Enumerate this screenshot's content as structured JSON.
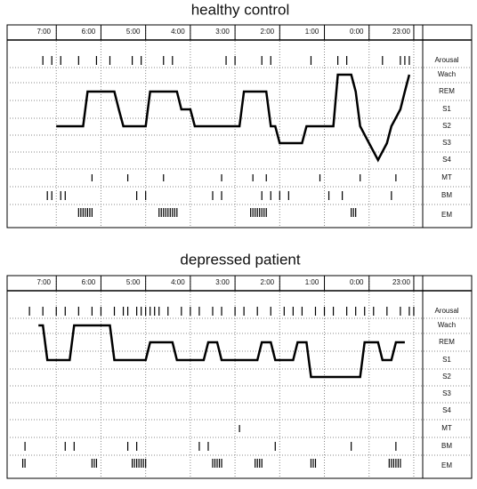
{
  "chart_data": [
    {
      "type": "hypnogram",
      "title": "healthy control",
      "rows": [
        "Arousal",
        "Wach",
        "REM",
        "S1",
        "S2",
        "S3",
        "S4",
        "MT",
        "BM",
        "EM"
      ],
      "xlim": [
        22.8,
        32.1
      ],
      "xticks": [
        {
          "value": 23,
          "label": "23:00"
        },
        {
          "value": 24,
          "label": "0:00"
        },
        {
          "value": 25,
          "label": "1:00"
        },
        {
          "value": 26,
          "label": "2:00"
        },
        {
          "value": 27,
          "label": "3:00"
        },
        {
          "value": 28,
          "label": "4:00"
        },
        {
          "value": 29,
          "label": "5:00"
        },
        {
          "value": 30,
          "label": "6:00"
        },
        {
          "value": 31,
          "label": "7:00"
        }
      ],
      "x": [
        23.1,
        23.2,
        23.3,
        23.5,
        23.6,
        23.8,
        24.0,
        24.2,
        24.3,
        24.4,
        24.7,
        24.8,
        25.4,
        25.5,
        26.0,
        26.1,
        26.2,
        26.3,
        26.8,
        26.9,
        27.9,
        28.0,
        28.2,
        28.3,
        28.9,
        29.0,
        29.5,
        29.6,
        29.7,
        30.3,
        30.4,
        31.0
      ],
      "stages": [
        "Wach",
        "REM",
        "S1",
        "S2",
        "S3",
        "S4",
        "S3",
        "S2",
        "REM",
        "Wach",
        "Wach",
        "S2",
        "S2",
        "S3",
        "S3",
        "S2",
        "S2",
        "REM",
        "REM",
        "S2",
        "S2",
        "S1",
        "S1",
        "REM",
        "REM",
        "S2",
        "S2",
        "S1",
        "REM",
        "REM",
        "S2",
        "S2"
      ],
      "arousal": [
        23.1,
        23.2,
        23.3,
        23.7,
        24.5,
        24.7,
        25.3,
        26.2,
        26.4,
        27.0,
        27.2,
        28.4,
        28.6,
        29.1,
        29.3,
        29.8,
        30.1,
        30.5,
        30.9,
        31.1,
        31.3
      ],
      "mt": [
        23.4,
        24.2,
        25.1,
        26.3,
        26.6,
        27.3,
        28.6,
        29.4,
        30.2
      ],
      "bm": [
        23.5,
        24.6,
        24.9,
        25.8,
        26.0,
        26.2,
        26.4,
        27.3,
        27.5,
        29.0,
        29.2,
        30.8,
        30.9,
        31.1,
        31.2
      ],
      "em": [
        24.3,
        24.35,
        24.4,
        26.3,
        26.35,
        26.4,
        26.45,
        26.5,
        26.55,
        26.6,
        26.65,
        28.3,
        28.35,
        28.4,
        28.45,
        28.5,
        28.55,
        28.6,
        28.65,
        28.7,
        30.2,
        30.25,
        30.3,
        30.35,
        30.4,
        30.45,
        30.5
      ]
    },
    {
      "type": "hypnogram",
      "title": "depressed patient",
      "rows": [
        "Arousal",
        "Wach",
        "REM",
        "S1",
        "S2",
        "S3",
        "S4",
        "MT",
        "BM",
        "EM"
      ],
      "xlim": [
        22.8,
        32.1
      ],
      "xticks": [
        {
          "value": 23,
          "label": "23:00"
        },
        {
          "value": 24,
          "label": "0:00"
        },
        {
          "value": 25,
          "label": "1:00"
        },
        {
          "value": 26,
          "label": "2:00"
        },
        {
          "value": 27,
          "label": "3:00"
        },
        {
          "value": 28,
          "label": "4:00"
        },
        {
          "value": 29,
          "label": "5:00"
        },
        {
          "value": 30,
          "label": "6:00"
        },
        {
          "value": 31,
          "label": "7:00"
        }
      ],
      "x": [
        23.2,
        23.4,
        23.5,
        23.7,
        23.8,
        24.1,
        24.2,
        25.3,
        25.4,
        25.6,
        25.7,
        26.1,
        26.2,
        26.4,
        26.5,
        27.3,
        27.4,
        27.6,
        27.7,
        28.3,
        28.4,
        28.9,
        29.0,
        29.7,
        29.8,
        30.6,
        30.7,
        31.2,
        31.3,
        31.4
      ],
      "stages": [
        "REM",
        "REM",
        "S1",
        "S1",
        "REM",
        "REM",
        "S2",
        "S2",
        "REM",
        "REM",
        "S1",
        "S1",
        "REM",
        "REM",
        "S1",
        "S1",
        "REM",
        "REM",
        "S1",
        "S1",
        "REM",
        "REM",
        "S1",
        "S1",
        "Wach",
        "Wach",
        "S1",
        "S1",
        "Wach",
        "Wach"
      ],
      "arousal": [
        23.0,
        23.1,
        23.3,
        23.6,
        23.9,
        24.1,
        24.3,
        24.5,
        24.8,
        25.0,
        25.2,
        25.5,
        25.7,
        25.9,
        26.2,
        26.5,
        26.8,
        27.0,
        27.3,
        27.5,
        27.8,
        28.0,
        28.2,
        28.5,
        28.7,
        28.8,
        28.9,
        29.0,
        29.1,
        29.2,
        29.4,
        29.5,
        29.7,
        30.0,
        30.2,
        30.5,
        30.8,
        31.0,
        31.3,
        31.6
      ],
      "mt": [
        26.9
      ],
      "bm": [
        23.4,
        24.4,
        26.1,
        27.6,
        27.8,
        29.2,
        29.4,
        30.6,
        30.8,
        31.7
      ],
      "em": [
        23.3,
        23.35,
        23.4,
        23.45,
        23.5,
        23.55,
        25.2,
        25.25,
        25.3,
        26.4,
        26.45,
        26.5,
        26.55,
        27.3,
        27.35,
        27.4,
        27.45,
        27.5,
        29.0,
        29.05,
        29.1,
        29.15,
        29.2,
        29.25,
        29.3,
        30.1,
        30.15,
        30.2,
        31.7,
        31.75
      ]
    }
  ]
}
